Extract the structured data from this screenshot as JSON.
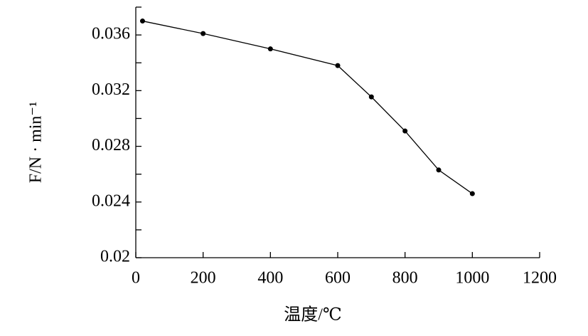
{
  "chart_data": {
    "type": "line",
    "x_label": "温度/℃",
    "y_label": "F/N · min⁻¹",
    "x": [
      20,
      200,
      400,
      600,
      700,
      800,
      900,
      1000
    ],
    "series": [
      {
        "color": "#000000",
        "values": [
          0.037,
          0.0361,
          0.035,
          0.0338,
          0.03155,
          0.0291,
          0.0263,
          0.0246
        ]
      }
    ],
    "xlim": [
      0,
      1200
    ],
    "xticks": [
      0,
      200,
      400,
      600,
      800,
      1000,
      1200
    ],
    "ylim": [
      0.02,
      0.038
    ],
    "yticks": [
      0.02,
      0.024,
      0.028,
      0.032,
      0.036
    ],
    "yminorticks": [
      0.022,
      0.026,
      0.03,
      0.034,
      0.038
    ]
  }
}
